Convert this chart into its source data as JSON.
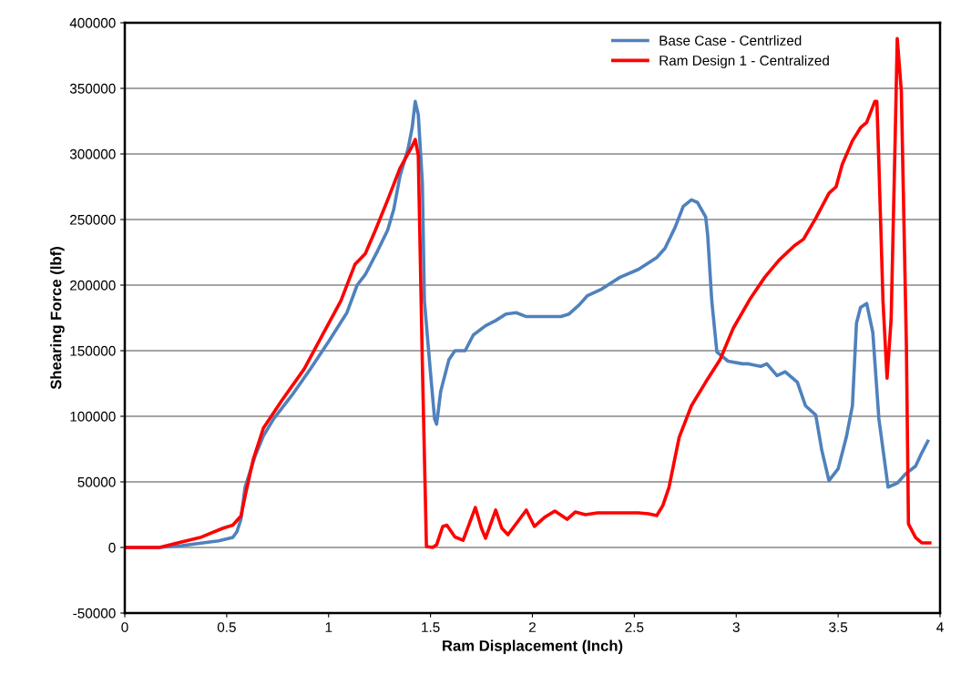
{
  "chart_data": {
    "type": "line",
    "xlabel": "Ram Displacement (Inch)",
    "ylabel": "Shearing Force (lbf)",
    "xlim": [
      0,
      4
    ],
    "xticks": [
      0,
      0.5,
      1,
      1.5,
      2,
      2.5,
      3,
      3.5,
      4
    ],
    "ylim": [
      -50000,
      400000
    ],
    "yticks": [
      -50000,
      0,
      50000,
      100000,
      150000,
      200000,
      250000,
      300000,
      350000,
      400000
    ],
    "grid": "y",
    "legend": "top right",
    "line_style": "solid",
    "marker": "none",
    "series": [
      {
        "name": "Base Case - Centrlized",
        "color": "#4f81bd",
        "x": [
          0,
          0.17,
          0.28,
          0.46,
          0.53,
          0.55,
          0.57,
          0.59,
          0.64,
          0.68,
          0.73,
          0.82,
          0.91,
          1.0,
          1.09,
          1.14,
          1.18,
          1.24,
          1.29,
          1.32,
          1.35,
          1.39,
          1.41,
          1.425,
          1.44,
          1.46,
          1.47,
          1.5,
          1.52,
          1.53,
          1.55,
          1.59,
          1.62,
          1.67,
          1.71,
          1.77,
          1.82,
          1.87,
          1.92,
          1.97,
          2.07,
          2.14,
          2.18,
          2.23,
          2.27,
          2.34,
          2.43,
          2.52,
          2.61,
          2.65,
          2.7,
          2.74,
          2.78,
          2.81,
          2.85,
          2.86,
          2.88,
          2.905,
          2.96,
          3.03,
          3.06,
          3.12,
          3.15,
          3.2,
          3.24,
          3.3,
          3.34,
          3.39,
          3.42,
          3.455,
          3.5,
          3.54,
          3.57,
          3.59,
          3.61,
          3.64,
          3.67,
          3.7,
          3.745,
          3.79,
          3.83,
          3.88,
          3.91,
          3.94
        ],
        "values": [
          0,
          0,
          1400,
          5000,
          7600,
          12000,
          21500,
          45800,
          70000,
          85000,
          98000,
          116000,
          136000,
          157000,
          179000,
          200000,
          208000,
          226000,
          242000,
          258000,
          283000,
          304000,
          320000,
          340000,
          330000,
          278000,
          188000,
          133000,
          98000,
          94000,
          119000,
          143000,
          150000,
          150000,
          162000,
          169000,
          173000,
          178000,
          179000,
          176000,
          176000,
          176000,
          178000,
          185000,
          192000,
          197000,
          206000,
          212000,
          221000,
          228000,
          244000,
          260000,
          265000,
          263000,
          252000,
          238000,
          188000,
          149000,
          142000,
          140000,
          140000,
          138000,
          140000,
          131000,
          134000,
          126000,
          108000,
          101000,
          74000,
          51000,
          60000,
          84000,
          108000,
          171000,
          183000,
          186000,
          164000,
          98000,
          46000,
          49000,
          56000,
          62000,
          72000,
          81000
        ]
      },
      {
        "name": "Ram Design 1 - Centralized",
        "color": "#ff0000",
        "x": [
          0,
          0.17,
          0.26,
          0.37,
          0.48,
          0.53,
          0.57,
          0.59,
          0.63,
          0.68,
          0.77,
          0.88,
          0.97,
          1.06,
          1.13,
          1.18,
          1.23,
          1.29,
          1.35,
          1.41,
          1.425,
          1.44,
          1.46,
          1.48,
          1.51,
          1.53,
          1.56,
          1.58,
          1.62,
          1.66,
          1.69,
          1.72,
          1.75,
          1.77,
          1.82,
          1.85,
          1.88,
          1.91,
          1.97,
          2.01,
          2.06,
          2.11,
          2.17,
          2.21,
          2.26,
          2.32,
          2.52,
          2.57,
          2.61,
          2.64,
          2.67,
          2.72,
          2.78,
          2.85,
          2.92,
          2.985,
          3.07,
          3.14,
          3.21,
          3.285,
          3.33,
          3.39,
          3.455,
          3.49,
          3.52,
          3.57,
          3.61,
          3.64,
          3.68,
          3.69,
          3.7,
          3.72,
          3.74,
          3.76,
          3.78,
          3.79,
          3.81,
          3.835,
          3.845,
          3.88,
          3.91,
          3.95
        ],
        "values": [
          0,
          0,
          3500,
          7600,
          14600,
          17000,
          24000,
          39000,
          67000,
          91000,
          112000,
          136000,
          162000,
          188000,
          216000,
          224000,
          242000,
          265000,
          289000,
          306000,
          311000,
          299000,
          140000,
          700,
          0,
          2000,
          16000,
          17000,
          8000,
          5500,
          18000,
          30500,
          14600,
          7000,
          28500,
          14600,
          9700,
          16000,
          28500,
          16000,
          23000,
          27800,
          21500,
          27000,
          25000,
          26400,
          26400,
          25700,
          24300,
          32000,
          45800,
          84000,
          108000,
          126000,
          143000,
          167000,
          190000,
          206000,
          219000,
          230000,
          235000,
          251000,
          270000,
          275000,
          292000,
          310000,
          320000,
          324000,
          340000,
          340000,
          292000,
          188000,
          129000,
          174000,
          313000,
          388000,
          348000,
          153000,
          18000,
          7600,
          3500,
          3500
        ]
      }
    ]
  }
}
